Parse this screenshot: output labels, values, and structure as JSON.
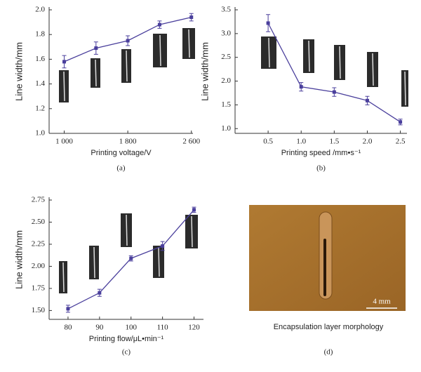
{
  "chart_data": [
    {
      "type": "line",
      "ylabel": "Line width/mm",
      "xlabel": "Printing voltage/V",
      "caption": "(a)",
      "x": [
        1000,
        1400,
        1800,
        2200,
        2600
      ],
      "series": [
        {
          "color": "#4a3f9c",
          "values": [
            1.58,
            1.69,
            1.75,
            1.88,
            1.94
          ],
          "errors": [
            0.05,
            0.05,
            0.04,
            0.03,
            0.03
          ]
        }
      ],
      "xlim": [
        810,
        2620
      ],
      "xticks": [
        {
          "value": 1000,
          "label": "1 000"
        },
        {
          "value": 1800,
          "label": "1 800"
        },
        {
          "value": 2600,
          "label": "2 600"
        }
      ],
      "ylim": [
        1.0,
        2.0
      ],
      "yticks": [
        {
          "value": 1,
          "label": "1.0"
        },
        1.2,
        1.4,
        1.6,
        1.8,
        {
          "value": 2,
          "label": "2.0"
        }
      ]
    },
    {
      "type": "line",
      "ylabel": "Line width/mm",
      "xlabel": "Printing speed /mm•s⁻¹",
      "caption": "(b)",
      "x": [
        0.5,
        1.0,
        1.5,
        2.0,
        2.5
      ],
      "series": [
        {
          "color": "#4a3f9c",
          "values": [
            3.22,
            1.88,
            1.77,
            1.59,
            1.14
          ],
          "errors": [
            0.18,
            0.09,
            0.09,
            0.09,
            0.06
          ]
        }
      ],
      "xlim": [
        0,
        2.6
      ],
      "xticks": [
        0.5,
        {
          "value": 1,
          "label": "1.0"
        },
        1.5,
        {
          "value": 2,
          "label": "2.0"
        },
        2.5
      ],
      "ylim": [
        0.9,
        3.5
      ],
      "yticks": [
        {
          "value": 1,
          "label": "1.0"
        },
        1.5,
        {
          "value": 2,
          "label": "2.0"
        },
        2.5,
        {
          "value": 3,
          "label": "3.0"
        },
        3.5
      ]
    },
    {
      "type": "line",
      "ylabel": "Line width/mm",
      "xlabel": "Printing flow/μL•min⁻¹",
      "caption": "(c)",
      "x": [
        80,
        90,
        100,
        110,
        120
      ],
      "series": [
        {
          "color": "#4a3f9c",
          "values": [
            1.52,
            1.7,
            2.09,
            2.23,
            2.64
          ],
          "errors": [
            0.04,
            0.04,
            0.03,
            0.05,
            0.03
          ]
        }
      ],
      "xlim": [
        74,
        123
      ],
      "xticks": [
        80,
        90,
        100,
        110,
        120
      ],
      "ylim": [
        1.4,
        2.75
      ],
      "yticks": [
        {
          "value": 1.5,
          "label": "1.50"
        },
        1.75,
        {
          "value": 2,
          "label": "2.00"
        },
        2.25,
        {
          "value": 2.5,
          "label": "2.50"
        },
        2.75
      ]
    }
  ],
  "image": {
    "scale_label": "4 mm",
    "caption": "Encapsulation layer morphology",
    "label": "(d)"
  }
}
